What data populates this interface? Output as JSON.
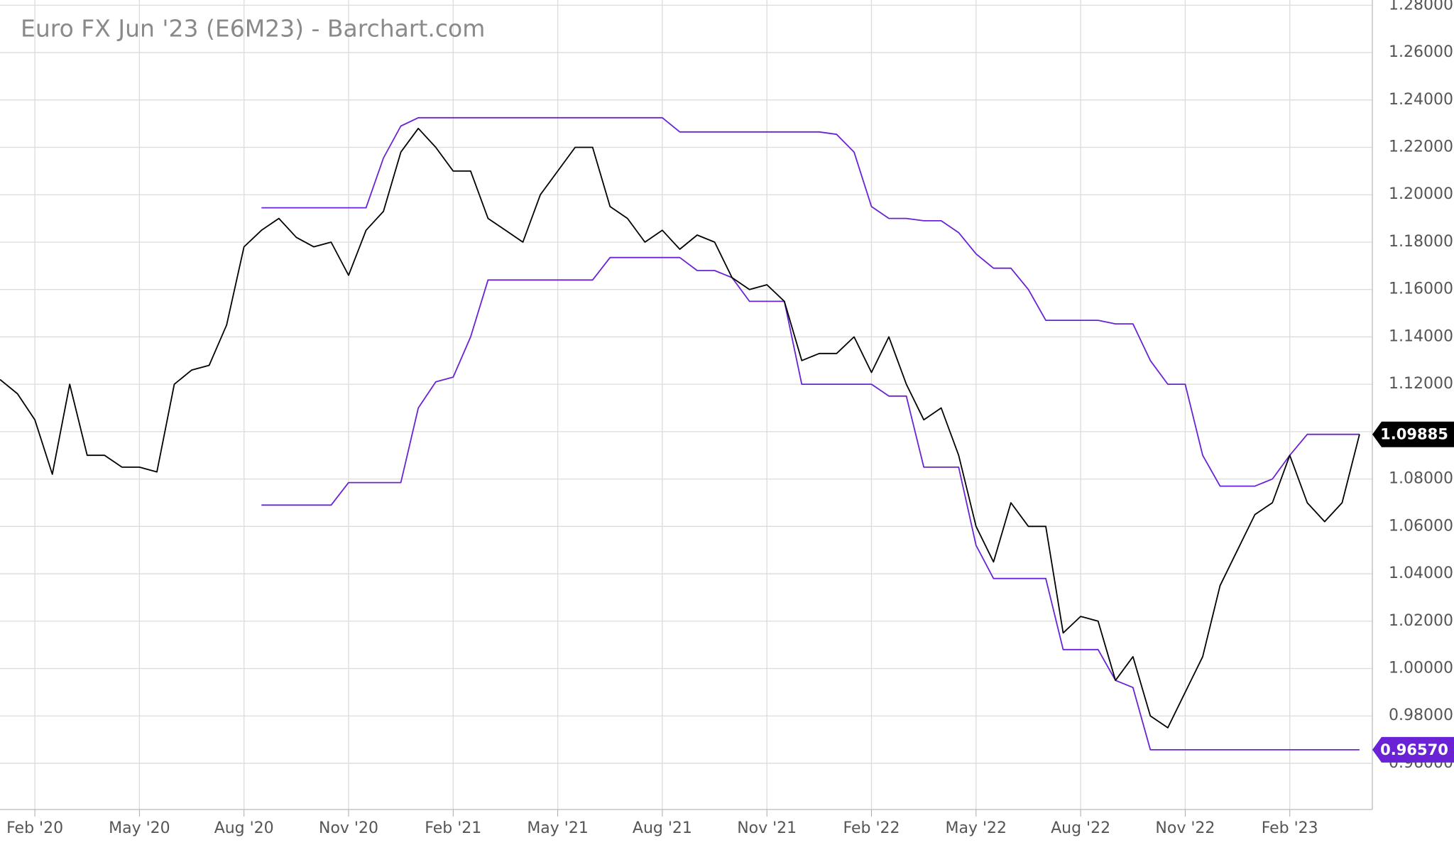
{
  "chart_data": {
    "type": "line",
    "title": "Euro FX Jun '23 (E6M23) - Barchart.com",
    "categories": [
      null,
      null,
      "Feb '20",
      null,
      null,
      null,
      null,
      null,
      "May '20",
      null,
      null,
      null,
      null,
      null,
      "Aug '20",
      null,
      null,
      null,
      null,
      null,
      "Nov '20",
      null,
      null,
      null,
      null,
      null,
      "Feb '21",
      null,
      null,
      null,
      null,
      null,
      "May '21",
      null,
      null,
      null,
      null,
      null,
      "Aug '21",
      null,
      null,
      null,
      null,
      null,
      "Nov '21",
      null,
      null,
      null,
      null,
      null,
      "Feb '22",
      null,
      null,
      null,
      null,
      null,
      "May '22",
      null,
      null,
      null,
      null,
      null,
      "Aug '22",
      null,
      null,
      null,
      null,
      null,
      "Nov '22",
      null,
      null,
      null,
      null,
      null,
      "Feb '23",
      null,
      null,
      null,
      null
    ],
    "series": [
      {
        "color": "#000000",
        "values": [
          1.122,
          1.116,
          1.105,
          1.082,
          1.12,
          1.09,
          1.09,
          1.085,
          1.085,
          1.083,
          1.12,
          1.126,
          1.128,
          1.145,
          1.178,
          1.185,
          1.19,
          1.182,
          1.178,
          1.18,
          1.166,
          1.185,
          1.193,
          1.218,
          1.228,
          1.22,
          1.21,
          1.21,
          1.19,
          1.185,
          1.18,
          1.2,
          1.21,
          1.22,
          1.22,
          1.195,
          1.19,
          1.18,
          1.185,
          1.177,
          1.183,
          1.18,
          1.165,
          1.16,
          1.162,
          1.155,
          1.13,
          1.133,
          1.133,
          1.14,
          1.125,
          1.14,
          1.12,
          1.105,
          1.11,
          1.09,
          1.06,
          1.045,
          1.07,
          1.06,
          1.06,
          1.015,
          1.022,
          1.02,
          0.995,
          1.005,
          0.98,
          0.975,
          0.99,
          1.005,
          1.035,
          1.05,
          1.065,
          1.07,
          1.09,
          1.07,
          1.062,
          1.07,
          1.09885
        ]
      },
      {
        "color": "#6a22d4",
        "values": [
          null,
          null,
          null,
          null,
          null,
          null,
          null,
          null,
          null,
          null,
          null,
          null,
          null,
          null,
          null,
          1.1945,
          1.1945,
          1.1945,
          1.1945,
          1.1945,
          1.1945,
          1.1945,
          1.2155,
          1.229,
          1.2325,
          1.2325,
          1.2325,
          1.2325,
          1.2325,
          1.2325,
          1.2325,
          1.2325,
          1.2325,
          1.2325,
          1.2325,
          1.2325,
          1.2325,
          1.2325,
          1.2325,
          1.2265,
          1.2265,
          1.2265,
          1.2265,
          1.2265,
          1.2265,
          1.2265,
          1.2265,
          1.2265,
          1.2255,
          1.218,
          1.195,
          1.19,
          1.19,
          1.189,
          1.189,
          1.184,
          1.175,
          1.169,
          1.169,
          1.16,
          1.147,
          1.147,
          1.147,
          1.147,
          1.1455,
          1.1455,
          1.13,
          1.12,
          1.12,
          1.09,
          1.077,
          1.077,
          1.077,
          1.08,
          1.09,
          1.09885,
          1.09885,
          1.09885,
          1.09885
        ]
      },
      {
        "color": "#6a22d4",
        "values": [
          null,
          null,
          null,
          null,
          null,
          null,
          null,
          null,
          null,
          null,
          null,
          null,
          null,
          null,
          null,
          1.069,
          1.069,
          1.069,
          1.069,
          1.069,
          1.0785,
          1.0785,
          1.0785,
          1.0785,
          1.11,
          1.121,
          1.123,
          1.14,
          1.164,
          1.164,
          1.164,
          1.164,
          1.164,
          1.164,
          1.164,
          1.1735,
          1.1735,
          1.1735,
          1.1735,
          1.1735,
          1.168,
          1.168,
          1.165,
          1.155,
          1.155,
          1.155,
          1.12,
          1.12,
          1.12,
          1.12,
          1.12,
          1.115,
          1.115,
          1.085,
          1.085,
          1.085,
          1.052,
          1.038,
          1.038,
          1.038,
          1.038,
          1.008,
          1.008,
          1.008,
          0.995,
          0.992,
          0.9657,
          0.9657,
          0.9657,
          0.9657,
          0.9657,
          0.9657,
          0.9657,
          0.9657,
          0.9657,
          0.9657,
          0.9657,
          0.9657,
          0.9657
        ],
        "value_labels": [
          null,
          null,
          null,
          null,
          null,
          null,
          null,
          null,
          null,
          null,
          null,
          null,
          null,
          null,
          null,
          null,
          null,
          null,
          null,
          null,
          null,
          null,
          null,
          null,
          null,
          null,
          null,
          null,
          null,
          null,
          null,
          null,
          null,
          null,
          null,
          null,
          null,
          null,
          null,
          null,
          null,
          null,
          null,
          null,
          null,
          null,
          null,
          null,
          null,
          null,
          null,
          null,
          null,
          null,
          null,
          null,
          null,
          null,
          null,
          null,
          null,
          null,
          null,
          null,
          null,
          null,
          null,
          null,
          null,
          null,
          null,
          null,
          null,
          null,
          null,
          null,
          null,
          null,
          "0.96570"
        ]
      }
    ],
    "ylim": [
      0.9405,
      1.2822
    ],
    "yticks": [
      {
        "value": 0.96,
        "label": "0.96000"
      },
      {
        "value": 0.98,
        "label": "0.98000"
      },
      {
        "value": 1.0,
        "label": "1.00000"
      },
      {
        "value": 1.02,
        "label": "1.02000"
      },
      {
        "value": 1.04,
        "label": "1.04000"
      },
      {
        "value": 1.06,
        "label": "1.06000"
      },
      {
        "value": 1.08,
        "label": "1.08000"
      },
      {
        "value": 1.1,
        "label": "1.10000"
      },
      {
        "value": 1.12,
        "label": "1.12000"
      },
      {
        "value": 1.14,
        "label": "1.14000"
      },
      {
        "value": 1.16,
        "label": "1.16000"
      },
      {
        "value": 1.18,
        "label": "1.18000"
      },
      {
        "value": 1.2,
        "label": "1.20000"
      },
      {
        "value": 1.22,
        "label": "1.22000"
      },
      {
        "value": 1.24,
        "label": "1.24000"
      },
      {
        "value": 1.26,
        "label": "1.26000"
      },
      {
        "value": 1.28,
        "label": "1.28000"
      }
    ],
    "grid": true
  }
}
